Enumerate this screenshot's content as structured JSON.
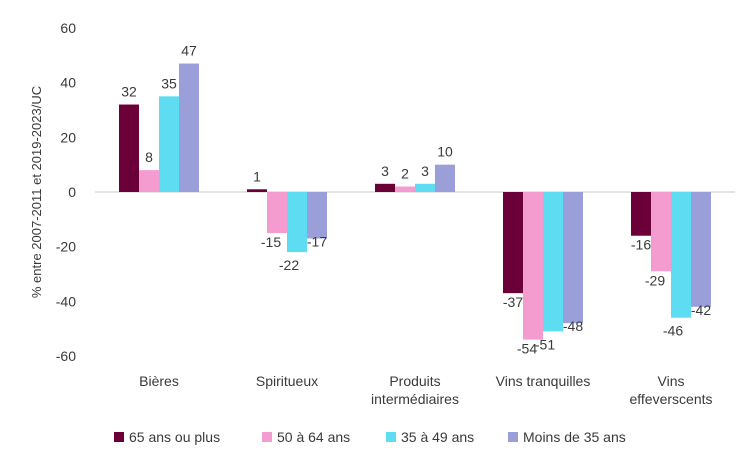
{
  "chart_data": {
    "type": "bar",
    "categories": [
      [
        "Bières"
      ],
      [
        "Spiritueux"
      ],
      [
        "Produits",
        "intermédiaires"
      ],
      [
        "Vins tranquilles"
      ],
      [
        "Vins",
        "effeverscents"
      ]
    ],
    "series": [
      {
        "name": "65 ans ou plus",
        "color": "#6b0038",
        "values": [
          32,
          1,
          3,
          -37,
          -16
        ]
      },
      {
        "name": "50 à 64 ans",
        "color": "#f49bd0",
        "values": [
          8,
          -15,
          2,
          -54,
          -29
        ]
      },
      {
        "name": "35 à 49 ans",
        "color": "#5ddcf2",
        "values": [
          35,
          -22,
          3,
          -51,
          -46
        ]
      },
      {
        "name": "Moins de 35 ans",
        "color": "#9b9fd9",
        "values": [
          47,
          -17,
          10,
          -48,
          -42
        ]
      }
    ],
    "ylabel": "% entre 2007-2011 et 2019-2023/UC",
    "ylim": [
      -60,
      60
    ],
    "yticks": [
      60,
      40,
      20,
      0,
      -20,
      -40,
      -60
    ],
    "grid": false,
    "legend": "bottom"
  }
}
